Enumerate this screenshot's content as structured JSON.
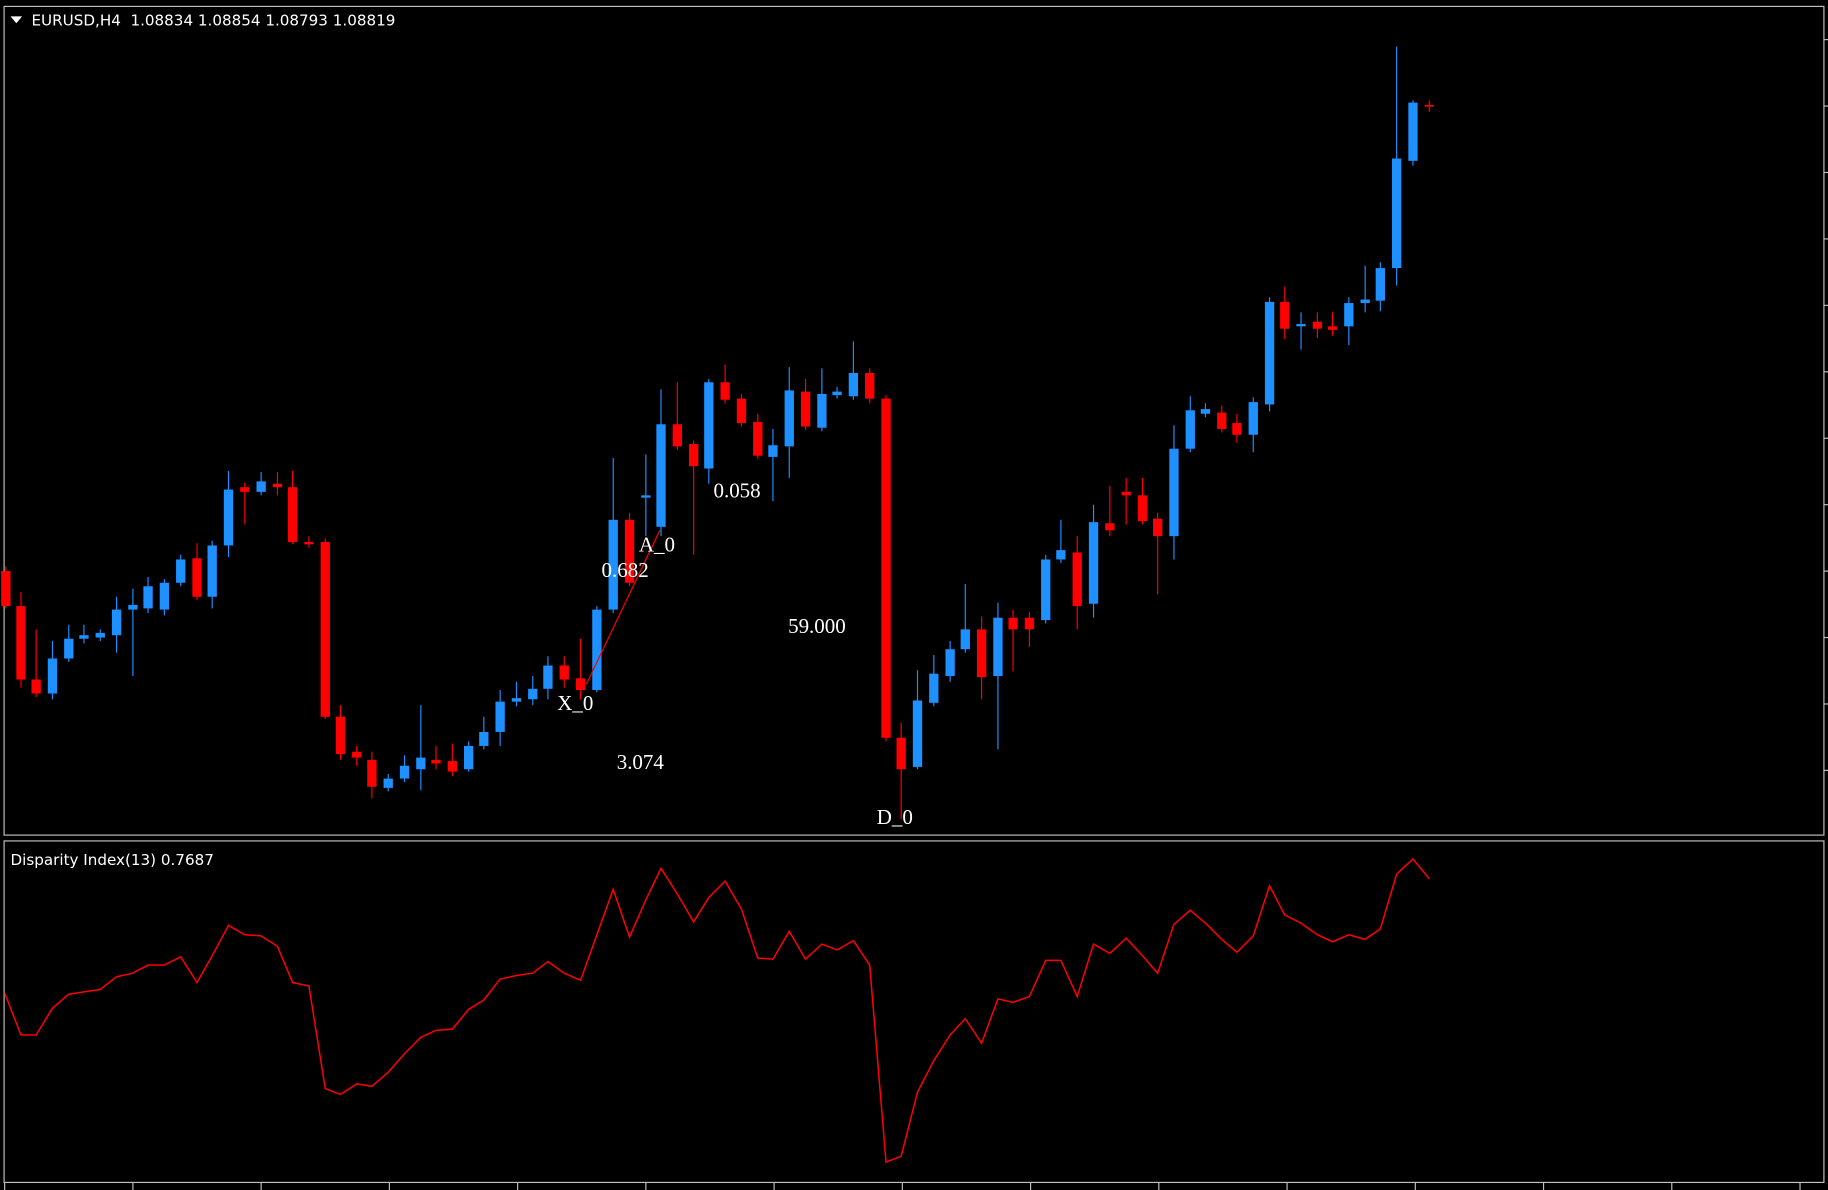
{
  "header": {
    "symbol_info": "EURUSD,H4  1.08834 1.08854 1.08793 1.08819"
  },
  "pattern_labels": [
    "A_0",
    "0.682",
    "0.058",
    "59.000",
    "X_0",
    "3.074",
    "D_0"
  ],
  "indicator": {
    "label": "Disparity Index(13) 0.7687"
  }
}
